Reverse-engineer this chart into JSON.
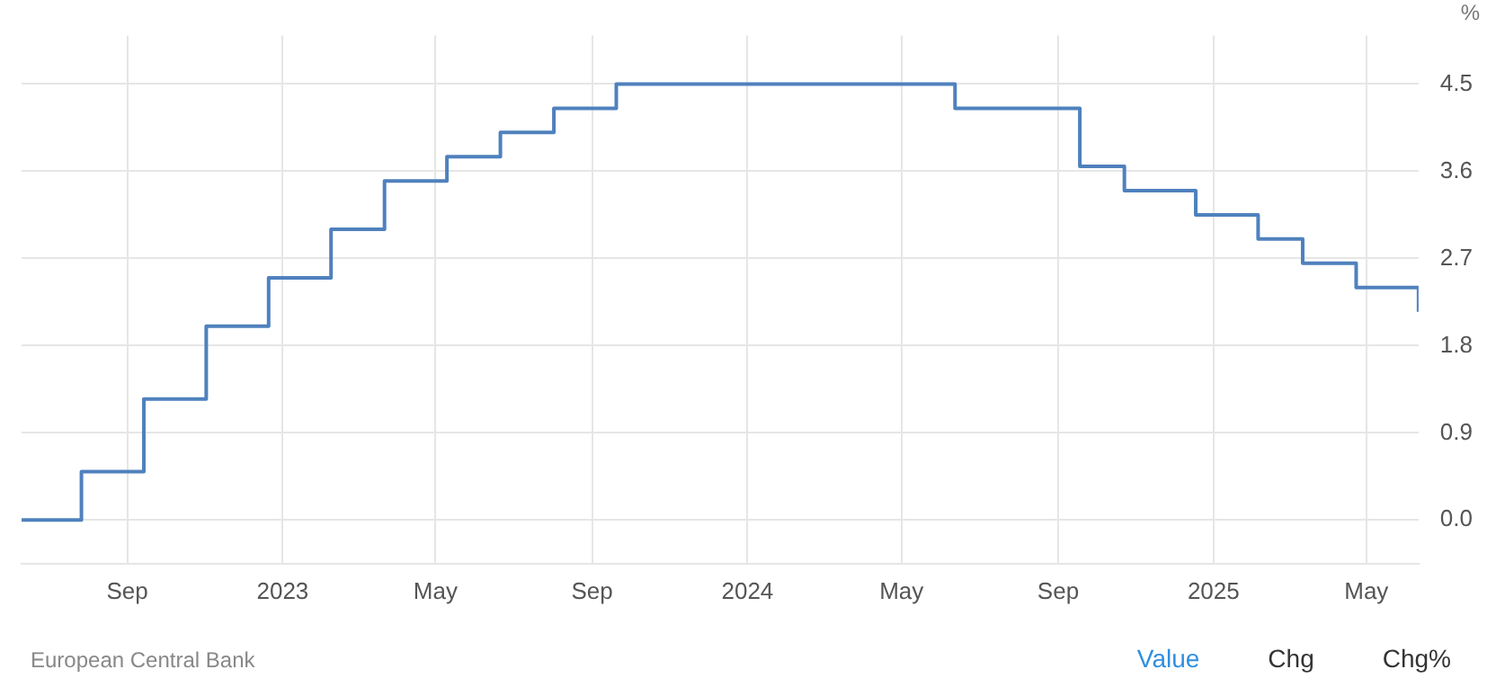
{
  "chart_data": {
    "type": "step",
    "ylabel": "%",
    "x": [
      "2022-06-10",
      "2022-07-27",
      "2022-09-14",
      "2022-11-02",
      "2022-12-21",
      "2023-02-08",
      "2023-03-22",
      "2023-05-10",
      "2023-06-21",
      "2023-08-02",
      "2023-09-20",
      "2024-06-12",
      "2024-09-18",
      "2024-10-23",
      "2024-12-18",
      "2025-02-05",
      "2025-03-12",
      "2025-04-23",
      "2025-06-11"
    ],
    "series": [
      {
        "color": "#4f81bd",
        "values": [
          0,
          0.5,
          1.25,
          2.0,
          2.5,
          3.0,
          3.5,
          3.75,
          4.0,
          4.25,
          4.5,
          4.25,
          3.65,
          3.4,
          3.15,
          2.9,
          2.65,
          2.4,
          2.15
        ]
      }
    ],
    "xlim": [
      "2022-06-10",
      "2025-06-11"
    ],
    "xticks": [
      {
        "value": "2022-09-01",
        "label": "Sep"
      },
      {
        "value": "2023-01-01",
        "label": "2023"
      },
      {
        "value": "2023-05-01",
        "label": "May"
      },
      {
        "value": "2023-09-01",
        "label": "Sep"
      },
      {
        "value": "2024-01-01",
        "label": "2024"
      },
      {
        "value": "2024-05-01",
        "label": "May"
      },
      {
        "value": "2024-09-01",
        "label": "Sep"
      },
      {
        "value": "2025-01-01",
        "label": "2025"
      },
      {
        "value": "2025-05-01",
        "label": "May"
      }
    ],
    "ylim": [
      -0.45,
      5.0
    ],
    "yticks": [
      {
        "value": 0,
        "label": "0.0"
      },
      0.9,
      1.8,
      2.7,
      3.6,
      4.5
    ],
    "grid": true,
    "legend": false,
    "marker": "none",
    "line_style": "solid",
    "annotations": [
      "European Central Bank",
      "Value",
      "Chg",
      "Chg%"
    ]
  }
}
